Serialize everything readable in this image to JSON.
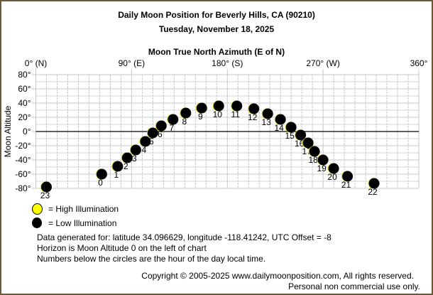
{
  "chart_data": {
    "type": "scatter",
    "title": "Daily Moon Position for Beverly Hills, CA (90210)",
    "subtitle": "Tuesday, November 18, 2025",
    "xlabel": "Moon True North Azimuth (E of N)",
    "ylabel": "Moon Altitude",
    "xlim": [
      0,
      360
    ],
    "ylim": [
      -80,
      80
    ],
    "x_ticks": [
      {
        "value": 0,
        "label": "0° (N)"
      },
      {
        "value": 90,
        "label": "90° (E)"
      },
      {
        "value": 180,
        "label": "180° (S)"
      },
      {
        "value": 270,
        "label": "270° (W)"
      },
      {
        "value": 360,
        "label": "360°"
      }
    ],
    "y_ticks": [
      {
        "value": 80,
        "label": "80°"
      },
      {
        "value": 60,
        "label": "60°"
      },
      {
        "value": 40,
        "label": "40°"
      },
      {
        "value": 20,
        "label": "20°"
      },
      {
        "value": 0,
        "label": "0°"
      },
      {
        "value": -20,
        "label": "-20°"
      },
      {
        "value": -40,
        "label": "-40°"
      },
      {
        "value": -60,
        "label": "-60°"
      },
      {
        "value": -80,
        "label": "-80°"
      }
    ],
    "grid": true,
    "points": [
      {
        "hour": "23",
        "azimuth": 10,
        "altitude": -78,
        "illumination": "low"
      },
      {
        "hour": "0",
        "azimuth": 62,
        "altitude": -60,
        "illumination": "low"
      },
      {
        "hour": "1",
        "azimuth": 77,
        "altitude": -49,
        "illumination": "low"
      },
      {
        "hour": "2",
        "azimuth": 86,
        "altitude": -37,
        "illumination": "low"
      },
      {
        "hour": "3",
        "azimuth": 94,
        "altitude": -26,
        "illumination": "low"
      },
      {
        "hour": "4",
        "azimuth": 103,
        "altitude": -14,
        "illumination": "low"
      },
      {
        "hour": "5",
        "azimuth": 110,
        "altitude": -2,
        "illumination": "low"
      },
      {
        "hour": "6",
        "azimuth": 118,
        "altitude": 8,
        "illumination": "low"
      },
      {
        "hour": "7",
        "azimuth": 129,
        "altitude": 17,
        "illumination": "low"
      },
      {
        "hour": "8",
        "azimuth": 141,
        "altitude": 26,
        "illumination": "low"
      },
      {
        "hour": "9",
        "azimuth": 156,
        "altitude": 33,
        "illumination": "low"
      },
      {
        "hour": "10",
        "azimuth": 172,
        "altitude": 36,
        "illumination": "low"
      },
      {
        "hour": "11",
        "azimuth": 189,
        "altitude": 36,
        "illumination": "low"
      },
      {
        "hour": "12",
        "azimuth": 205,
        "altitude": 32,
        "illumination": "low"
      },
      {
        "hour": "13",
        "azimuth": 218,
        "altitude": 25,
        "illumination": "low"
      },
      {
        "hour": "14",
        "azimuth": 230,
        "altitude": 17,
        "illumination": "low"
      },
      {
        "hour": "15",
        "azimuth": 240,
        "altitude": 6,
        "illumination": "low"
      },
      {
        "hour": "16",
        "azimuth": 249,
        "altitude": -5,
        "illumination": "low"
      },
      {
        "hour": "17",
        "azimuth": 256,
        "altitude": -16,
        "illumination": "low"
      },
      {
        "hour": "18",
        "azimuth": 262,
        "altitude": -28,
        "illumination": "low"
      },
      {
        "hour": "19",
        "azimuth": 270,
        "altitude": -40,
        "illumination": "low"
      },
      {
        "hour": "20",
        "azimuth": 280,
        "altitude": -52,
        "illumination": "low"
      },
      {
        "hour": "21",
        "azimuth": 293,
        "altitude": -63,
        "illumination": "low"
      },
      {
        "hour": "22",
        "azimuth": 318,
        "altitude": -73,
        "illumination": "low"
      }
    ],
    "legend": [
      {
        "label": "= High Illumination",
        "color": "#ffff00"
      },
      {
        "label": "= Low Illumination",
        "color": "#000000"
      }
    ]
  },
  "notes": [
    "Data generated for: latitude 34.096629, longitude -118.41242, UTC Offset = -8",
    "Horizon is Moon Altitude 0 on the left of chart",
    "Numbers below the circles are the hour of the day local time."
  ],
  "copyright": "Copyright © 2005-2025 www.dailymoonposition.com, All rights reserved.",
  "usage": "Personal non commercial use only.",
  "colors": {
    "border": "#6b5a3a",
    "grid": "#c8c8c8",
    "high": "#ffff00",
    "low": "#000000"
  }
}
